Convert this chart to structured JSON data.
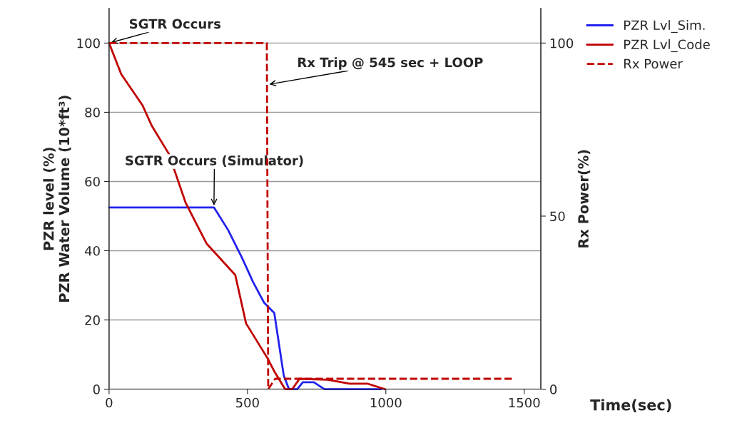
{
  "chart_data": {
    "type": "line",
    "xlabel": "Time(sec)",
    "ylabel": "PZR level (%)\nPZR Water Volume (10*ft³)",
    "y2label": "Rx Power(%)",
    "xlim": [
      0,
      1560
    ],
    "xticks": [
      0,
      500,
      1000,
      1500
    ],
    "ylim": [
      0,
      110
    ],
    "yticks": [
      0,
      20,
      40,
      60,
      80,
      100
    ],
    "y2lim": [
      0,
      110
    ],
    "y2ticks": [
      0,
      50,
      100
    ],
    "grid": "y",
    "legend": "top right",
    "series": [
      {
        "name": "PZR Lvl_Sim.",
        "color": "#2222ee",
        "line_style": "solid",
        "x": [
          0,
          379,
          430,
          480,
          520,
          560,
          597,
          631,
          650,
          680,
          700,
          740,
          778,
          985
        ],
        "values": [
          52.5,
          52.5,
          46,
          38,
          31,
          25,
          22,
          4,
          0,
          0,
          2,
          2,
          0,
          0
        ]
      },
      {
        "name": "PZR Lvl_Code",
        "color": "#c00000",
        "line_style": "solid",
        "x": [
          0,
          44,
          121,
          155,
          216,
          276,
          314,
          353,
          456,
          495,
          572,
          598,
          636,
          662,
          688,
          791,
          869,
          933,
          997
        ],
        "values": [
          100,
          91,
          82,
          76,
          68,
          54,
          48,
          42,
          33,
          19,
          9,
          5,
          0,
          0,
          3,
          2.7,
          1.6,
          1.6,
          0
        ]
      },
      {
        "name": "Rx Power",
        "color": "#c00000",
        "line_style": "dashed",
        "axis": "y2",
        "x": [
          0,
          570,
          575,
          600,
          1460
        ],
        "values": [
          100,
          100,
          0,
          3,
          3
        ]
      }
    ],
    "annotations": [
      {
        "text": "SGTR Occurs",
        "x": 0,
        "y": 100
      },
      {
        "text": "Rx Trip @ 545 sec + LOOP",
        "x": 572,
        "y": 88
      },
      {
        "text": "SGTR Occurs (Simulator)",
        "x": 379,
        "y": 52.5
      }
    ]
  }
}
